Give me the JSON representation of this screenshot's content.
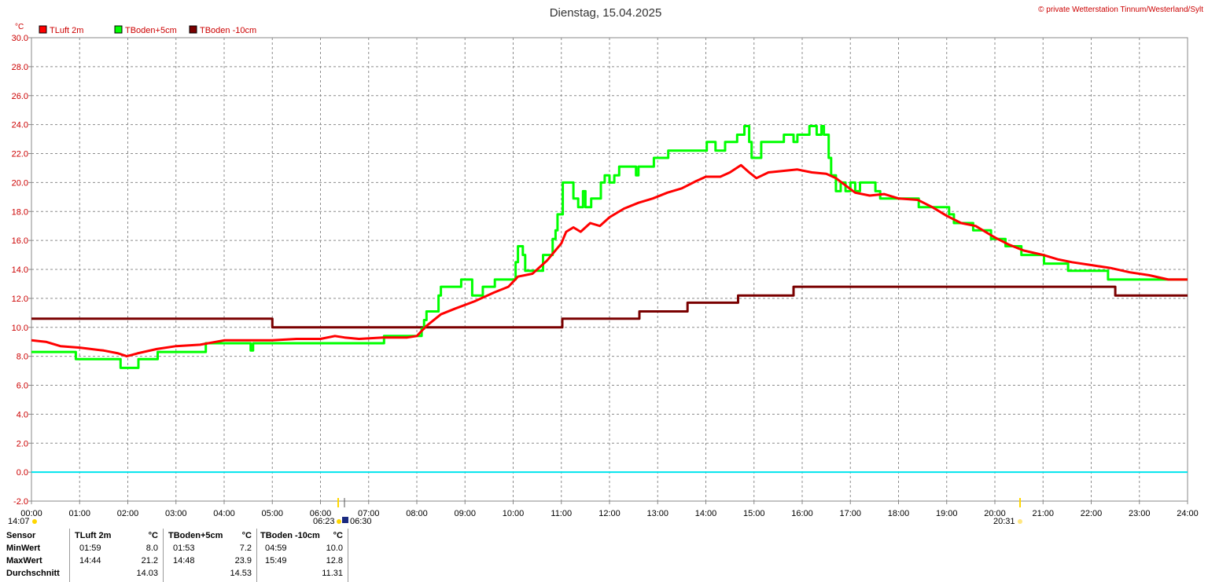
{
  "header": {
    "title": "Dienstag, 15.04.2025",
    "copyright": "© private Wetterstation Tinnum/Westerland/Sylt",
    "unit": "°C"
  },
  "legend": [
    {
      "label": "TLuft 2m",
      "color": "#ff0000"
    },
    {
      "label": "TBoden+5cm",
      "color": "#00ff00"
    },
    {
      "label": "TBoden -10cm",
      "color": "#7a0000"
    }
  ],
  "sun": {
    "now_label": "14:07",
    "sunrise_label": "06:23",
    "marker_label": "06:30",
    "sunset_label": "20:31"
  },
  "chart_data": {
    "type": "line",
    "title": "Dienstag, 15.04.2025",
    "ylabel": "°C",
    "xlabel": "",
    "xlim": [
      0,
      24
    ],
    "ylim": [
      -2,
      30
    ],
    "y_ticks": [
      "30.0",
      "28.0",
      "26.0",
      "24.0",
      "22.0",
      "20.0",
      "18.0",
      "16.0",
      "14.0",
      "12.0",
      "10.0",
      "8.0",
      "6.0",
      "4.0",
      "2.0",
      "0.0",
      "-2.0"
    ],
    "x_ticks": [
      "00:00",
      "01:00",
      "02:00",
      "03:00",
      "04:00",
      "05:00",
      "06:00",
      "07:00",
      "08:00",
      "09:00",
      "10:00",
      "11:00",
      "12:00",
      "13:00",
      "14:00",
      "15:00",
      "16:00",
      "17:00",
      "18:00",
      "19:00",
      "20:00",
      "21:00",
      "22:00",
      "23:00",
      "24:00"
    ],
    "grid": true,
    "legend_position": "top-left",
    "zero_line_color": "#00e5ee",
    "series": [
      {
        "name": "TLuft 2m",
        "color": "#ff0000",
        "step": false,
        "points": [
          [
            0,
            9.1
          ],
          [
            0.3,
            9.0
          ],
          [
            0.6,
            8.7
          ],
          [
            1.0,
            8.6
          ],
          [
            1.5,
            8.4
          ],
          [
            1.8,
            8.2
          ],
          [
            1.98,
            8.0
          ],
          [
            2.2,
            8.2
          ],
          [
            2.6,
            8.5
          ],
          [
            3.0,
            8.7
          ],
          [
            3.5,
            8.8
          ],
          [
            4.0,
            9.1
          ],
          [
            4.5,
            9.1
          ],
          [
            5.0,
            9.1
          ],
          [
            5.5,
            9.2
          ],
          [
            6.0,
            9.2
          ],
          [
            6.3,
            9.4
          ],
          [
            6.5,
            9.3
          ],
          [
            6.8,
            9.2
          ],
          [
            7.3,
            9.3
          ],
          [
            7.8,
            9.3
          ],
          [
            8.0,
            9.4
          ],
          [
            8.2,
            10.1
          ],
          [
            8.5,
            10.9
          ],
          [
            8.8,
            11.3
          ],
          [
            9.2,
            11.8
          ],
          [
            9.6,
            12.4
          ],
          [
            9.9,
            12.8
          ],
          [
            10.1,
            13.5
          ],
          [
            10.4,
            13.7
          ],
          [
            10.7,
            14.6
          ],
          [
            11.0,
            15.8
          ],
          [
            11.1,
            16.6
          ],
          [
            11.25,
            16.9
          ],
          [
            11.4,
            16.6
          ],
          [
            11.6,
            17.2
          ],
          [
            11.8,
            17.0
          ],
          [
            12.0,
            17.6
          ],
          [
            12.3,
            18.2
          ],
          [
            12.6,
            18.6
          ],
          [
            12.9,
            18.9
          ],
          [
            13.2,
            19.3
          ],
          [
            13.5,
            19.6
          ],
          [
            13.8,
            20.1
          ],
          [
            14.0,
            20.4
          ],
          [
            14.3,
            20.4
          ],
          [
            14.5,
            20.7
          ],
          [
            14.73,
            21.2
          ],
          [
            14.9,
            20.7
          ],
          [
            15.05,
            20.3
          ],
          [
            15.3,
            20.7
          ],
          [
            15.6,
            20.8
          ],
          [
            15.9,
            20.9
          ],
          [
            16.2,
            20.7
          ],
          [
            16.5,
            20.6
          ],
          [
            16.7,
            20.3
          ],
          [
            16.9,
            19.8
          ],
          [
            17.1,
            19.3
          ],
          [
            17.4,
            19.1
          ],
          [
            17.7,
            19.2
          ],
          [
            18.0,
            18.9
          ],
          [
            18.4,
            18.8
          ],
          [
            18.7,
            18.3
          ],
          [
            19.0,
            17.7
          ],
          [
            19.3,
            17.2
          ],
          [
            19.6,
            17.0
          ],
          [
            20.0,
            16.2
          ],
          [
            20.3,
            15.7
          ],
          [
            20.6,
            15.3
          ],
          [
            21.0,
            15.0
          ],
          [
            21.3,
            14.7
          ],
          [
            21.6,
            14.5
          ],
          [
            22.0,
            14.3
          ],
          [
            22.4,
            14.1
          ],
          [
            22.8,
            13.8
          ],
          [
            23.2,
            13.6
          ],
          [
            23.6,
            13.3
          ],
          [
            24.0,
            13.3
          ]
        ]
      },
      {
        "name": "TBoden+5cm",
        "color": "#00ff00",
        "step": true,
        "points": [
          [
            0,
            8.3
          ],
          [
            0.9,
            8.3
          ],
          [
            0.92,
            7.8
          ],
          [
            1.83,
            7.8
          ],
          [
            1.85,
            7.2
          ],
          [
            2.2,
            7.2
          ],
          [
            2.22,
            7.8
          ],
          [
            2.6,
            7.8
          ],
          [
            2.62,
            8.3
          ],
          [
            3.0,
            8.3
          ],
          [
            3.6,
            8.3
          ],
          [
            3.62,
            8.9
          ],
          [
            4.5,
            8.9
          ],
          [
            4.55,
            8.4
          ],
          [
            4.6,
            8.9
          ],
          [
            5.5,
            8.9
          ],
          [
            6.5,
            8.9
          ],
          [
            7.3,
            8.9
          ],
          [
            7.32,
            9.4
          ],
          [
            8.0,
            9.4
          ],
          [
            8.1,
            9.9
          ],
          [
            8.15,
            10.5
          ],
          [
            8.2,
            11.1
          ],
          [
            8.4,
            11.1
          ],
          [
            8.45,
            12.2
          ],
          [
            8.5,
            12.8
          ],
          [
            8.9,
            12.8
          ],
          [
            8.92,
            13.3
          ],
          [
            9.1,
            13.3
          ],
          [
            9.15,
            12.2
          ],
          [
            9.35,
            12.2
          ],
          [
            9.37,
            12.8
          ],
          [
            9.6,
            12.8
          ],
          [
            9.62,
            13.3
          ],
          [
            10.0,
            13.3
          ],
          [
            10.05,
            14.5
          ],
          [
            10.1,
            15.6
          ],
          [
            10.2,
            15.0
          ],
          [
            10.25,
            13.9
          ],
          [
            10.6,
            13.9
          ],
          [
            10.62,
            15.0
          ],
          [
            10.8,
            15.0
          ],
          [
            10.82,
            16.1
          ],
          [
            10.88,
            16.7
          ],
          [
            10.92,
            17.8
          ],
          [
            11.0,
            17.8
          ],
          [
            11.03,
            20.0
          ],
          [
            11.2,
            20.0
          ],
          [
            11.25,
            18.9
          ],
          [
            11.35,
            18.3
          ],
          [
            11.45,
            19.4
          ],
          [
            11.5,
            18.3
          ],
          [
            11.6,
            18.3
          ],
          [
            11.62,
            18.9
          ],
          [
            11.8,
            18.9
          ],
          [
            11.82,
            20.0
          ],
          [
            11.9,
            20.5
          ],
          [
            12.0,
            20.0
          ],
          [
            12.1,
            20.5
          ],
          [
            12.2,
            21.1
          ],
          [
            12.5,
            21.1
          ],
          [
            12.55,
            20.5
          ],
          [
            12.6,
            21.1
          ],
          [
            12.9,
            21.1
          ],
          [
            12.92,
            21.7
          ],
          [
            13.2,
            21.7
          ],
          [
            13.22,
            22.2
          ],
          [
            14.0,
            22.2
          ],
          [
            14.02,
            22.8
          ],
          [
            14.2,
            22.2
          ],
          [
            14.4,
            22.8
          ],
          [
            14.6,
            22.8
          ],
          [
            14.65,
            23.3
          ],
          [
            14.8,
            23.9
          ],
          [
            14.9,
            22.8
          ],
          [
            14.95,
            21.7
          ],
          [
            15.1,
            21.7
          ],
          [
            15.15,
            22.8
          ],
          [
            15.6,
            22.8
          ],
          [
            15.62,
            23.3
          ],
          [
            15.8,
            23.3
          ],
          [
            15.82,
            22.8
          ],
          [
            15.9,
            23.3
          ],
          [
            16.1,
            23.3
          ],
          [
            16.15,
            23.9
          ],
          [
            16.3,
            23.3
          ],
          [
            16.4,
            23.9
          ],
          [
            16.45,
            23.3
          ],
          [
            16.5,
            23.3
          ],
          [
            16.55,
            21.7
          ],
          [
            16.6,
            20.5
          ],
          [
            16.7,
            19.4
          ],
          [
            16.8,
            20.0
          ],
          [
            16.9,
            19.4
          ],
          [
            17.0,
            20.0
          ],
          [
            17.1,
            19.4
          ],
          [
            17.2,
            20.0
          ],
          [
            17.5,
            20.0
          ],
          [
            17.52,
            19.4
          ],
          [
            17.6,
            19.4
          ],
          [
            17.62,
            18.9
          ],
          [
            18.4,
            18.9
          ],
          [
            18.42,
            18.3
          ],
          [
            19.0,
            18.3
          ],
          [
            19.05,
            17.8
          ],
          [
            19.15,
            17.2
          ],
          [
            19.5,
            17.2
          ],
          [
            19.55,
            16.7
          ],
          [
            19.9,
            16.7
          ],
          [
            19.92,
            16.1
          ],
          [
            20.2,
            16.1
          ],
          [
            20.22,
            15.6
          ],
          [
            20.5,
            15.6
          ],
          [
            20.55,
            15.0
          ],
          [
            20.7,
            15.0
          ],
          [
            21.0,
            15.0
          ],
          [
            21.02,
            14.4
          ],
          [
            21.5,
            14.4
          ],
          [
            21.52,
            13.9
          ],
          [
            22.3,
            13.9
          ],
          [
            22.35,
            13.3
          ],
          [
            23.5,
            13.3
          ],
          [
            24.0,
            13.3
          ]
        ]
      },
      {
        "name": "TBoden -10cm",
        "color": "#7a0000",
        "step": true,
        "points": [
          [
            0,
            10.6
          ],
          [
            4.98,
            10.6
          ],
          [
            5.0,
            10.0
          ],
          [
            11.0,
            10.0
          ],
          [
            11.02,
            10.6
          ],
          [
            12.6,
            10.6
          ],
          [
            12.62,
            11.1
          ],
          [
            13.6,
            11.1
          ],
          [
            13.62,
            11.7
          ],
          [
            14.65,
            11.7
          ],
          [
            14.67,
            12.2
          ],
          [
            15.8,
            12.2
          ],
          [
            15.82,
            12.8
          ],
          [
            22.48,
            12.8
          ],
          [
            22.5,
            12.2
          ],
          [
            24.0,
            12.2
          ]
        ]
      }
    ]
  },
  "stats": {
    "sensor_header": "Sensor",
    "row_labels": [
      "MinWert",
      "MaxWert",
      "Durchschnitt"
    ],
    "columns": [
      {
        "name": "TLuft 2m",
        "unit": "°C",
        "min_time": "01:59",
        "min_val": "8.0",
        "max_time": "14:44",
        "max_val": "21.2",
        "avg": "14.03"
      },
      {
        "name": "TBoden+5cm",
        "unit": "°C",
        "min_time": "01:53",
        "min_val": "7.2",
        "max_time": "14:48",
        "max_val": "23.9",
        "avg": "14.53"
      },
      {
        "name": "TBoden -10cm",
        "unit": "°C",
        "min_time": "04:59",
        "min_val": "10.0",
        "max_time": "15:49",
        "max_val": "12.8",
        "avg": "11.31"
      }
    ]
  }
}
